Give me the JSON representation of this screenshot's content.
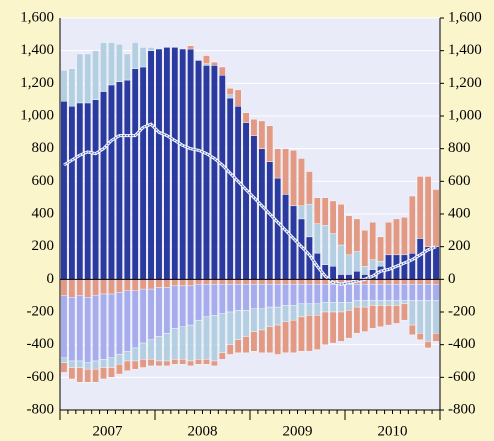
{
  "chart_data": {
    "type": "bar",
    "stacked": true,
    "categories": [
      null,
      null,
      null,
      null,
      null,
      null,
      "2007",
      null,
      null,
      null,
      null,
      null,
      null,
      null,
      null,
      null,
      null,
      null,
      "2008",
      null,
      null,
      null,
      null,
      null,
      null,
      null,
      null,
      null,
      null,
      null,
      "2009",
      null,
      null,
      null,
      null,
      null,
      null,
      null,
      null,
      null,
      null,
      null,
      "2010",
      null,
      null,
      null,
      null,
      null
    ],
    "ylim": [
      -800,
      1600
    ],
    "yticks": [
      {
        "value": -800,
        "label": "-800"
      },
      {
        "value": -600,
        "label": "-600"
      },
      {
        "value": -400,
        "label": "-400"
      },
      {
        "value": -200,
        "label": "-200"
      },
      0,
      200,
      400,
      600,
      800,
      {
        "value": 1000,
        "label": "1,000"
      },
      {
        "value": 1200,
        "label": "1,200"
      },
      {
        "value": 1400,
        "label": "1,400"
      },
      {
        "value": 1600,
        "label": "1,600"
      }
    ],
    "y2lim": [
      -800,
      1600
    ],
    "y2ticks": [
      {
        "value": -800,
        "label": "-800"
      },
      {
        "value": -600,
        "label": "-600"
      },
      {
        "value": -400,
        "label": "-400"
      },
      {
        "value": -200,
        "label": "-200"
      },
      0,
      200,
      400,
      600,
      800,
      {
        "value": 1000,
        "label": "1,000"
      },
      {
        "value": 1200,
        "label": "1,200"
      },
      {
        "value": 1400,
        "label": "1,400"
      },
      {
        "value": 1600,
        "label": "1,600"
      }
    ],
    "grid": true,
    "series": [
      {
        "color": "#2b3a9e",
        "values": [
          1090,
          1060,
          1080,
          1080,
          1100,
          1150,
          1190,
          1210,
          1220,
          1290,
          1300,
          1400,
          1410,
          1420,
          1420,
          1410,
          1410,
          1340,
          1310,
          1310,
          1250,
          1110,
          1060,
          960,
          880,
          800,
          720,
          620,
          520,
          450,
          370,
          260,
          160,
          90,
          80,
          30,
          30,
          50,
          30,
          60,
          80,
          150,
          150,
          150,
          160,
          250,
          200,
          200
        ]
      },
      {
        "color": "#b4cfe2",
        "values": [
          190,
          230,
          300,
          300,
          300,
          300,
          260,
          230,
          160,
          160,
          120,
          20,
          0,
          0,
          0,
          0,
          0,
          0,
          10,
          0,
          0,
          20,
          0,
          0,
          0,
          0,
          0,
          0,
          0,
          0,
          80,
          200,
          180,
          240,
          200,
          180,
          120,
          120,
          50,
          60,
          30,
          0,
          0,
          0,
          0,
          0,
          0,
          0
        ]
      },
      {
        "color": "#e39a85",
        "values": [
          0,
          0,
          0,
          0,
          0,
          0,
          0,
          0,
          0,
          0,
          0,
          0,
          0,
          0,
          0,
          0,
          20,
          0,
          50,
          20,
          50,
          40,
          100,
          60,
          100,
          170,
          220,
          180,
          280,
          340,
          290,
          200,
          160,
          170,
          200,
          250,
          240,
          200,
          220,
          230,
          150,
          200,
          220,
          230,
          350,
          380,
          430,
          350
        ]
      },
      {
        "color": "#e39a85",
        "values": [
          -100,
          -110,
          -100,
          -110,
          -100,
          -90,
          -90,
          -80,
          -70,
          -70,
          -60,
          -60,
          -50,
          -50,
          -40,
          -40,
          -40,
          -30,
          -30,
          -30,
          -30,
          -30,
          -30,
          -30,
          -30,
          -30,
          -30,
          -30,
          -30,
          -30,
          -30,
          -30,
          -30,
          -30,
          -30,
          -30,
          -30,
          -30,
          -30,
          -30,
          -30,
          -30,
          -30,
          -30,
          -30,
          -30,
          -30,
          -30
        ]
      },
      {
        "color": "#a6acec",
        "values": [
          -380,
          -390,
          -400,
          -400,
          -400,
          -400,
          -390,
          -380,
          -370,
          -350,
          -330,
          -310,
          -300,
          -280,
          -260,
          -250,
          -240,
          -220,
          -200,
          -190,
          -180,
          -170,
          -160,
          -160,
          -150,
          -150,
          -140,
          -140,
          -130,
          -130,
          -120,
          -120,
          -120,
          -110,
          -110,
          -110,
          -110,
          -100,
          -100,
          -100,
          -100,
          -100,
          -100,
          -100,
          -100,
          -100,
          -100,
          -100
        ]
      },
      {
        "color": "#b4cfe2",
        "values": [
          -30,
          -40,
          -40,
          -40,
          -50,
          -50,
          -60,
          -60,
          -60,
          -80,
          -100,
          -120,
          -150,
          -170,
          -190,
          -200,
          -220,
          -240,
          -260,
          -280,
          -240,
          -200,
          -180,
          -160,
          -140,
          -130,
          -120,
          -110,
          -100,
          -90,
          -80,
          -70,
          -70,
          -60,
          -60,
          -60,
          -50,
          -40,
          -40,
          -30,
          -30,
          -30,
          -30,
          -20,
          -150,
          -200,
          -250,
          -200
        ]
      },
      {
        "color": "#e39a85",
        "values": [
          -60,
          -70,
          -90,
          -80,
          -80,
          -70,
          -60,
          -60,
          -60,
          -50,
          -50,
          -40,
          -30,
          -30,
          -30,
          -30,
          -30,
          -30,
          -30,
          -30,
          -40,
          -60,
          -80,
          -100,
          -120,
          -140,
          -160,
          -180,
          -190,
          -200,
          -210,
          -220,
          -210,
          -200,
          -190,
          -180,
          -170,
          -160,
          -150,
          -140,
          -130,
          -120,
          -110,
          -100,
          -60,
          -40,
          -40,
          -50
        ]
      },
      {
        "type": "line",
        "color": "#5b70c8",
        "values": [
          700,
          730,
          760,
          780,
          770,
          800,
          850,
          880,
          880,
          880,
          930,
          950,
          900,
          880,
          850,
          820,
          800,
          790,
          770,
          740,
          700,
          650,
          600,
          550,
          500,
          450,
          400,
          350,
          300,
          250,
          200,
          150,
          80,
          20,
          -20,
          -30,
          -20,
          -10,
          0,
          20,
          50,
          60,
          80,
          100,
          120,
          150,
          180,
          200
        ]
      }
    ]
  }
}
